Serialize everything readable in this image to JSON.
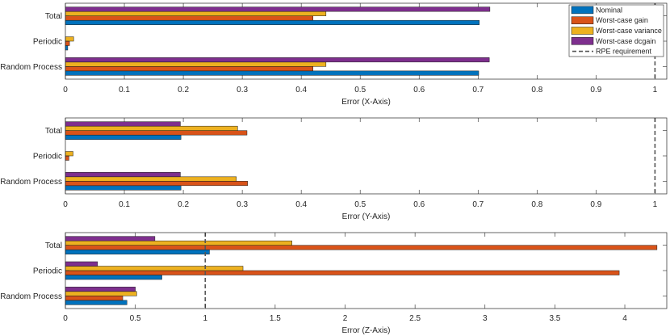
{
  "chart_data": [
    {
      "type": "bar",
      "orientation": "horizontal",
      "categories": [
        "Total",
        "Periodic",
        "Random Process"
      ],
      "xlabel": "Error (X-Axis)",
      "xlim": [
        0,
        1.02
      ],
      "xticks": [
        0,
        0.1,
        0.2,
        0.3,
        0.4,
        0.5,
        0.6,
        0.7,
        0.8,
        0.9,
        1
      ],
      "xticklabels": [
        "0",
        "0.1",
        "0.2",
        "0.3",
        "0.4",
        "0.5",
        "0.6",
        "0.7",
        "0.8",
        "0.9",
        "1"
      ],
      "requirement": 1.0,
      "series": [
        {
          "name": "Nominal",
          "values": [
            0.702,
            0.004,
            0.701
          ]
        },
        {
          "name": "Worst-case gain",
          "values": [
            0.42,
            0.007,
            0.42
          ]
        },
        {
          "name": "Worst-case variance",
          "values": [
            0.442,
            0.014,
            0.442
          ]
        },
        {
          "name": "Worst-case dcgain",
          "values": [
            0.72,
            0.0,
            0.719
          ]
        }
      ],
      "legend": {
        "location": "top-right",
        "entries": [
          "Nominal",
          "Worst-case gain",
          "Worst-case variance",
          "Worst-case dcgain",
          "RPE requirement"
        ]
      }
    },
    {
      "type": "bar",
      "orientation": "horizontal",
      "categories": [
        "Total",
        "Periodic",
        "Random Process"
      ],
      "xlabel": "Error (Y-Axis)",
      "xlim": [
        0,
        1.02
      ],
      "xticks": [
        0,
        0.1,
        0.2,
        0.3,
        0.4,
        0.5,
        0.6,
        0.7,
        0.8,
        0.9,
        1
      ],
      "xticklabels": [
        "0",
        "0.1",
        "0.2",
        "0.3",
        "0.4",
        "0.5",
        "0.6",
        "0.7",
        "0.8",
        "0.9",
        "1"
      ],
      "requirement": 1.0,
      "series": [
        {
          "name": "Nominal",
          "values": [
            0.196,
            0.0,
            0.196
          ]
        },
        {
          "name": "Worst-case gain",
          "values": [
            0.308,
            0.006,
            0.309
          ]
        },
        {
          "name": "Worst-case variance",
          "values": [
            0.292,
            0.013,
            0.29
          ]
        },
        {
          "name": "Worst-case dcgain",
          "values": [
            0.195,
            0.0,
            0.195
          ]
        }
      ]
    },
    {
      "type": "bar",
      "orientation": "horizontal",
      "categories": [
        "Total",
        "Periodic",
        "Random Process"
      ],
      "xlabel": "Error (Z-Axis)",
      "xlim": [
        0,
        4.3
      ],
      "xticks": [
        0,
        0.5,
        1,
        1.5,
        2,
        2.5,
        3,
        3.5,
        4
      ],
      "xticklabels": [
        "0",
        "0.5",
        "1",
        "1.5",
        "2",
        "2.5",
        "3",
        "3.5",
        "4"
      ],
      "requirement": 1.0,
      "series": [
        {
          "name": "Nominal",
          "values": [
            1.03,
            0.69,
            0.44
          ]
        },
        {
          "name": "Worst-case gain",
          "values": [
            4.23,
            3.96,
            0.41
          ]
        },
        {
          "name": "Worst-case variance",
          "values": [
            1.62,
            1.27,
            0.51
          ]
        },
        {
          "name": "Worst-case dcgain",
          "values": [
            0.64,
            0.23,
            0.5
          ]
        }
      ]
    }
  ],
  "colors": {
    "Nominal": "#0072BD",
    "Worst-case gain": "#D95319",
    "Worst-case variance": "#EDB120",
    "Worst-case dcgain": "#7E2F8E",
    "requirement_line": "#555555",
    "axis": "#262626"
  }
}
